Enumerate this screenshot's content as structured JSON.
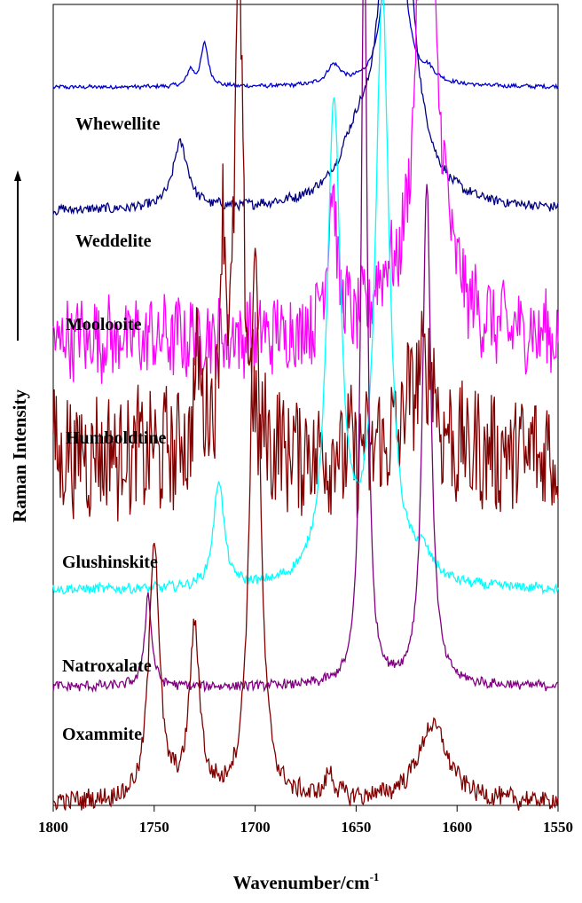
{
  "chart_data": {
    "type": "line",
    "xlabel": "Wavenumber/cm",
    "xlabel_sup": "-1",
    "ylabel": "Raman Intensity",
    "xlim": [
      1800,
      1550
    ],
    "x_reversed": true,
    "xticks": [
      1800,
      1750,
      1700,
      1650,
      1600,
      1550
    ],
    "grid": false,
    "series": [
      {
        "name": "Whewellite",
        "color": "#0000cc",
        "baseline": 0.925,
        "noise": 0.0006,
        "peaks": [
          [
            1631,
            0.7,
            2.8
          ],
          [
            1725,
            0.055,
            2.2
          ],
          [
            1732,
            0.02,
            2
          ],
          [
            1661,
            0.025,
            4
          ],
          [
            1614,
            0.012,
            4
          ]
        ]
      },
      {
        "name": "Weddelite",
        "color": "#000080",
        "baseline": 0.765,
        "noise": 0.0015,
        "peaks": [
          [
            1630,
            0.64,
            7
          ],
          [
            1737,
            0.085,
            4.5
          ],
          [
            1650,
            0.06,
            10
          ]
        ]
      },
      {
        "name": "Moolooite",
        "color": "#ff00ff",
        "baseline": 0.6,
        "noise": 0.012,
        "peaks": [
          [
            1616,
            0.6,
            5
          ],
          [
            1662,
            0.18,
            3
          ],
          [
            1636,
            0.05,
            5
          ],
          [
            1610,
            0.12,
            8
          ]
        ]
      },
      {
        "name": "Humboldtine",
        "color": "#800000",
        "baseline": 0.45,
        "noise": 0.018,
        "peaks": [
          [
            1708,
            0.62,
            2.4
          ],
          [
            1716,
            0.25,
            2
          ],
          [
            1728,
            0.12,
            2
          ],
          [
            1622,
            0.07,
            6
          ],
          [
            1614,
            0.1,
            4
          ]
        ]
      },
      {
        "name": "Glushinskite",
        "color": "#00ffff",
        "baseline": 0.275,
        "noise": 0.0015,
        "peaks": [
          [
            1637,
            0.76,
            4
          ],
          [
            1661,
            0.62,
            4
          ],
          [
            1718,
            0.14,
            3
          ],
          [
            1617,
            0.03,
            6
          ]
        ]
      },
      {
        "name": "Natroxalate",
        "color": "#800080",
        "baseline": 0.15,
        "noise": 0.0015,
        "peaks": [
          [
            1646,
            1.0,
            1.8
          ],
          [
            1615,
            0.65,
            2.5
          ],
          [
            1753,
            0.12,
            2
          ]
        ]
      },
      {
        "name": "Oxammite",
        "color": "#800000",
        "baseline": 0.0,
        "noise": 0.003,
        "peaks": [
          [
            1700,
            0.72,
            3
          ],
          [
            1750,
            0.34,
            3
          ],
          [
            1730,
            0.22,
            3
          ],
          [
            1612,
            0.1,
            9
          ],
          [
            1663,
            0.03,
            3
          ]
        ]
      }
    ]
  }
}
